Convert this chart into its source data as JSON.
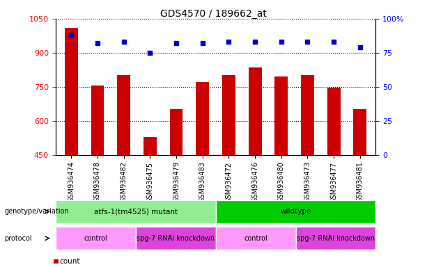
{
  "title": "GDS4570 / 189662_at",
  "samples": [
    "GSM936474",
    "GSM936478",
    "GSM936482",
    "GSM936475",
    "GSM936479",
    "GSM936483",
    "GSM936472",
    "GSM936476",
    "GSM936480",
    "GSM936473",
    "GSM936477",
    "GSM936481"
  ],
  "counts": [
    1010,
    755,
    800,
    530,
    650,
    770,
    800,
    835,
    795,
    800,
    745,
    650
  ],
  "percentile_ranks": [
    88,
    82,
    83,
    75,
    82,
    82,
    83,
    83,
    83,
    83,
    83,
    79
  ],
  "ylim_left": [
    450,
    1050
  ],
  "ylim_right": [
    0,
    100
  ],
  "yticks_left": [
    450,
    600,
    750,
    900,
    1050
  ],
  "yticks_right": [
    0,
    25,
    50,
    75,
    100
  ],
  "bar_color": "#cc0000",
  "dot_color": "#0000cc",
  "bg_color": "#ffffff",
  "genotype_groups": [
    {
      "label": "atfs-1(tm4525) mutant",
      "start": 0,
      "end": 6,
      "color": "#90ee90"
    },
    {
      "label": "wildtype",
      "start": 6,
      "end": 12,
      "color": "#00cc00"
    }
  ],
  "protocol_groups": [
    {
      "label": "control",
      "start": 0,
      "end": 3,
      "color": "#ff99ff"
    },
    {
      "label": "spg-7 RNAi knockdown",
      "start": 3,
      "end": 6,
      "color": "#dd44dd"
    },
    {
      "label": "control",
      "start": 6,
      "end": 9,
      "color": "#ff99ff"
    },
    {
      "label": "spg-7 RNAi knockdown",
      "start": 9,
      "end": 12,
      "color": "#dd44dd"
    }
  ]
}
